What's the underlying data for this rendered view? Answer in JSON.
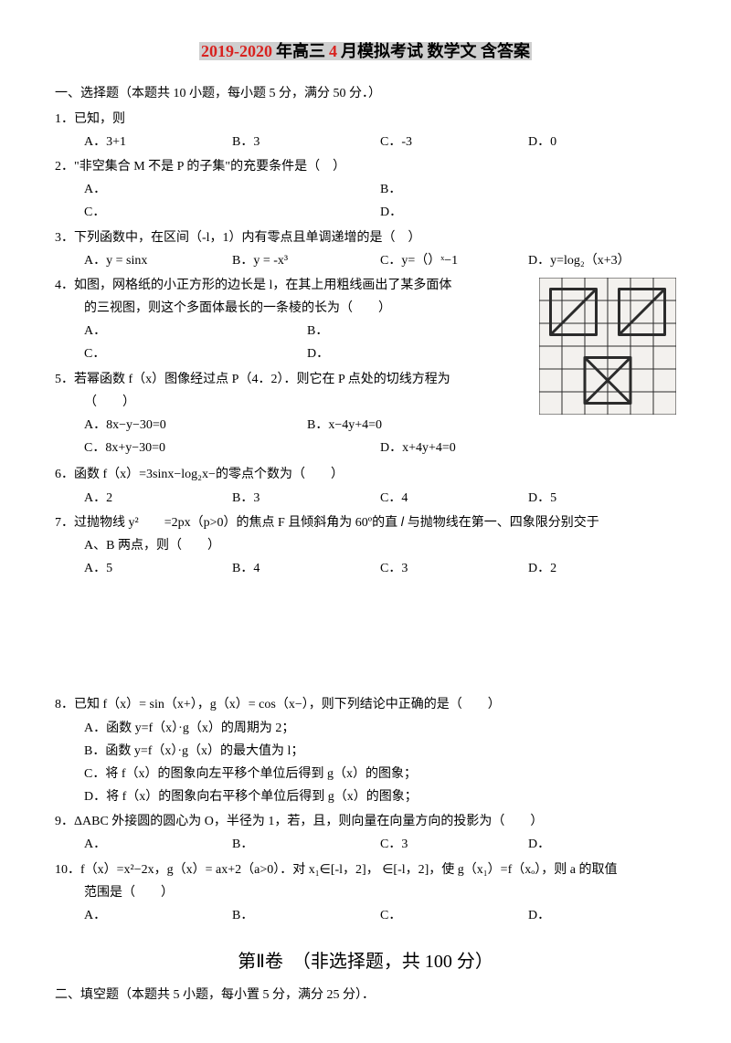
{
  "title": {
    "pre": "2019-2020",
    "mid": "年高三",
    "num": "4",
    "post": "月模拟考试 数学文 含答案"
  },
  "s1": "一、选择题（本题共 10 小题，每小题 5 分，满分 50 分．）",
  "q1": {
    "stem": "1．已知，则",
    "a": "A．3+1",
    "b": "B．3",
    "c": "C．-3",
    "d": "D．0"
  },
  "q2": {
    "stem": "2．\"非空集合 M 不是 P 的子集\"的充要条件是（　）",
    "a": "A．",
    "b": "B．",
    "c": "C．",
    "d": "D．"
  },
  "q3": {
    "stem": "3．下列函数中，在区间（-l，1）内有零点且单调递增的是（　）",
    "a": "A．y = sinx",
    "b": "B．y = -x³",
    "c": "C．y=（）ˣ−1",
    "d": "D．y=log₂（x+3）"
  },
  "q4": {
    "l1": "4．如图，网格纸的小正方形的边长是 l，在其上用粗线画出了某多面体",
    "l2": "的三视图，则这个多面体最长的一条棱的长为（　　）",
    "a": "A．",
    "b": "B．",
    "c": "C．",
    "d": "D．"
  },
  "q5": {
    "l1": "5．若幂函数 f（x）图像经过点 P（4．2）．则它在 P 点处的切线方程为",
    "l2": "（　　）",
    "a": "A．8x−y−30=0",
    "b": "B．x−4y+4=0",
    "c": "C．8x+y−30=0",
    "d": "D．x+4y+4=0"
  },
  "q6": {
    "stem": "6．函数 f（x）=3sinx−log₂x−的零点个数为（　　）",
    "a": "A．2",
    "b": "B．3",
    "c": "C．4",
    "d": "D．5"
  },
  "q7": {
    "l1": "7．过抛物线 y²　　=2px（p>0）的焦点 F 且倾斜角为 60º的直 𝑙 与抛物线在第一、四象限分别交于",
    "l2": "A、B 两点，则（　　）",
    "a": "A．5",
    "b": "B．4",
    "c": "C．3",
    "d": "D．2"
  },
  "q8": {
    "stem": "8．已知 f（x）= sin（x+），g（x）= cos（x−），则下列结论中正确的是（　　）",
    "a": "A．函数 y=f（x）·g（x）的周期为 2；",
    "b": "B．函数 y=f（x）·g（x）的最大值为 l；",
    "c": "C．将 f（x）的图象向左平移个单位后得到 g（x）的图象；",
    "d": "D．将 f（x）的图象向右平移个单位后得到 g（x）的图象；"
  },
  "q9": {
    "stem": "9．ΔABC 外接圆的圆心为 O，半径为 1，若，且，则向量在向量方向的投影为（　　）",
    "a": "A．",
    "b": "B．",
    "c": "C．3",
    "d": "D．"
  },
  "q10": {
    "l1": "10．f（x）=x²−2x，g（x）= ax+2（a>0）．对 x₁∈[-l，2]， ∈[-l，2]，使 g（x₁）=f（xₒ），则 a 的取值",
    "l2": "范围是（　　）",
    "a": "A．",
    "b": "B．",
    "c": "C．",
    "d": "D．"
  },
  "part2": "第Ⅱ卷　（非选择题，共 100 分）",
  "s2": "二、填空题（本题共 5 小题，每小置 5 分，满分 25 分）．",
  "fig": {
    "grid_color": "#2b2b2b",
    "bg": "#f3f1ee",
    "cells": 6
  }
}
